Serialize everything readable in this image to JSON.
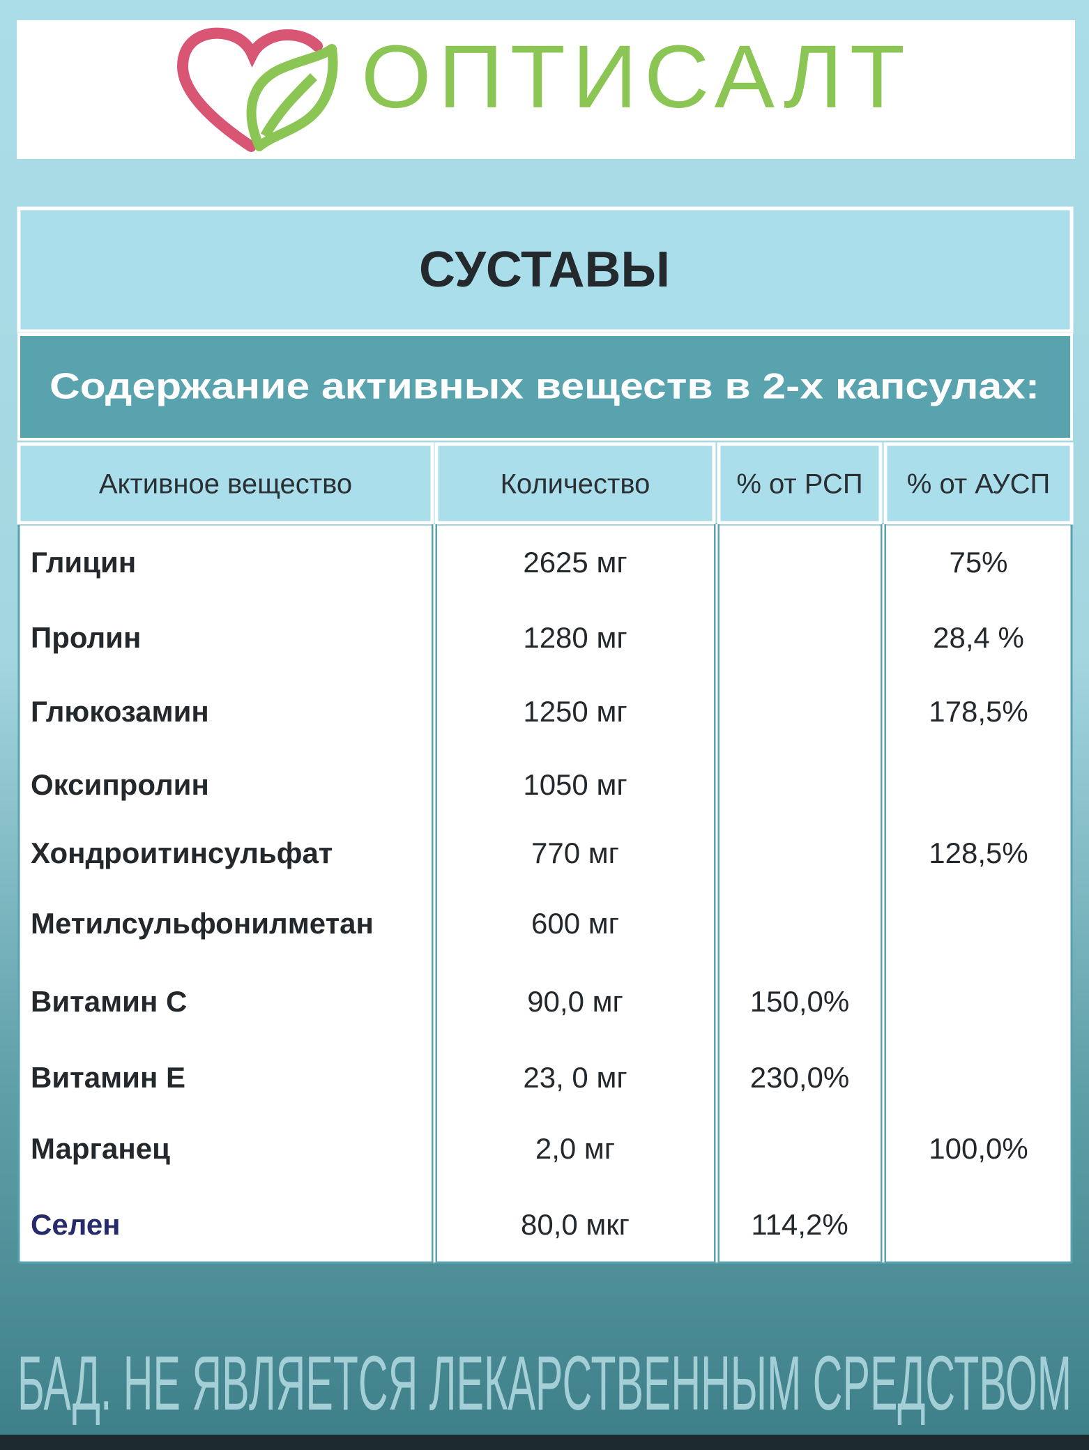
{
  "header": {
    "brand": "ОПТИСАЛТ",
    "title": "СУСТАВЫ",
    "subtitle": "Содержание активных веществ в 2-х капсулах:"
  },
  "table": {
    "columns": [
      "Активное вещество",
      "Количество",
      "% от РСП",
      "% от АУСП"
    ],
    "rows": [
      [
        "Глицин",
        "2625 мг",
        null,
        "75%"
      ],
      [
        "Пролин",
        "1280 мг",
        null,
        "28,4 %"
      ],
      [
        "Глюкозамин",
        "1250 мг",
        null,
        "178,5%"
      ],
      [
        "Оксипролин",
        "1050 мг",
        null,
        null
      ],
      [
        "Хондроитинсульфат",
        "770 мг",
        null,
        "128,5%"
      ],
      [
        "Метилсульфонилметан",
        "600 мг",
        null,
        null
      ],
      [
        "Витамин С",
        "90,0 мг",
        "150,0%",
        null
      ],
      [
        "Витамин Е",
        "23, 0 мг",
        "230,0%",
        null
      ],
      [
        "Марганец",
        "2,0 мг",
        null,
        "100,0%"
      ],
      [
        "Селен",
        "80,0 мкг",
        "114,2%",
        null
      ]
    ]
  },
  "footer": {
    "note": "БАД. НЕ ЯВЛЯЕТСЯ ЛЕКАРСТВЕННЫМ СРЕДСТВОМ"
  }
}
